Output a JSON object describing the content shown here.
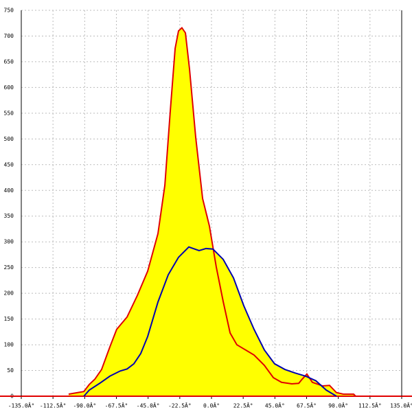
{
  "chart_data": {
    "type": "area",
    "xlim": [
      -135,
      135
    ],
    "ylim": [
      0,
      750
    ],
    "xticks": [
      {
        "value": -135,
        "label": "-135.0Â°"
      },
      {
        "value": -112.5,
        "label": "-112.5Â°"
      },
      {
        "value": -90,
        "label": "-90.0Â°"
      },
      {
        "value": -67.5,
        "label": "-67.5Â°"
      },
      {
        "value": -45,
        "label": "-45.0Â°"
      },
      {
        "value": -22.5,
        "label": "-22.5Â°"
      },
      {
        "value": 0,
        "label": "0.0Â°"
      },
      {
        "value": 22.5,
        "label": "22.5Â°"
      },
      {
        "value": 45,
        "label": "45.0Â°"
      },
      {
        "value": 67.5,
        "label": "67.5Â°"
      },
      {
        "value": 90,
        "label": "90.0Â°"
      },
      {
        "value": 112.5,
        "label": "112.5Â°"
      },
      {
        "value": 135,
        "label": "135.0Â°"
      }
    ],
    "yticks": [
      0,
      50,
      100,
      150,
      200,
      250,
      300,
      350,
      400,
      450,
      500,
      550,
      600,
      650,
      700,
      750
    ],
    "grid": true,
    "fill": "#ffff00",
    "series": [
      {
        "color": "#e00000",
        "x": [
          -101.4,
          -95,
          -90.6,
          -86.7,
          -82.8,
          -78,
          -72.1,
          -67.3,
          -59.9,
          -52.6,
          -45.3,
          -38,
          -33.1,
          -29.2,
          -25.8,
          -23.4,
          -21,
          -18.5,
          -15.6,
          -11.2,
          -6.3,
          -1.5,
          3.4,
          8.3,
          13.2,
          18,
          22.9,
          30.2,
          37.5,
          43.9,
          49.7,
          57,
          61.9,
          64.3,
          67.7,
          71.6,
          78.9,
          83.8,
          88.7,
          93.6,
          100.9,
          102.3
        ],
        "values": [
          4,
          7,
          9,
          23,
          33,
          52,
          96,
          130,
          154,
          196,
          243,
          316,
          410,
          556,
          676,
          710,
          716,
          706,
          636,
          503,
          384,
          331,
          251,
          184,
          123,
          100,
          92,
          80,
          60,
          36,
          27,
          24,
          25,
          33,
          43,
          27,
          20,
          21,
          7,
          4,
          4,
          0
        ]
      },
      {
        "color": "#0000b0",
        "x": [
          -90.6,
          -86.7,
          -79.4,
          -72.1,
          -64.8,
          -59.9,
          -55.1,
          -50.2,
          -45.3,
          -38,
          -30.7,
          -23.4,
          -16.1,
          -8.8,
          -3.9,
          1,
          8.3,
          15.6,
          22.9,
          30.2,
          37.5,
          44.8,
          52.1,
          59.5,
          66.8,
          74.1,
          81.4,
          88.7
        ],
        "values": [
          0,
          12,
          25,
          39,
          49,
          53,
          63,
          83,
          116,
          183,
          236,
          270,
          290,
          283,
          287,
          286,
          266,
          230,
          176,
          130,
          90,
          63,
          52,
          45,
          39,
          30,
          12,
          0
        ]
      }
    ]
  }
}
